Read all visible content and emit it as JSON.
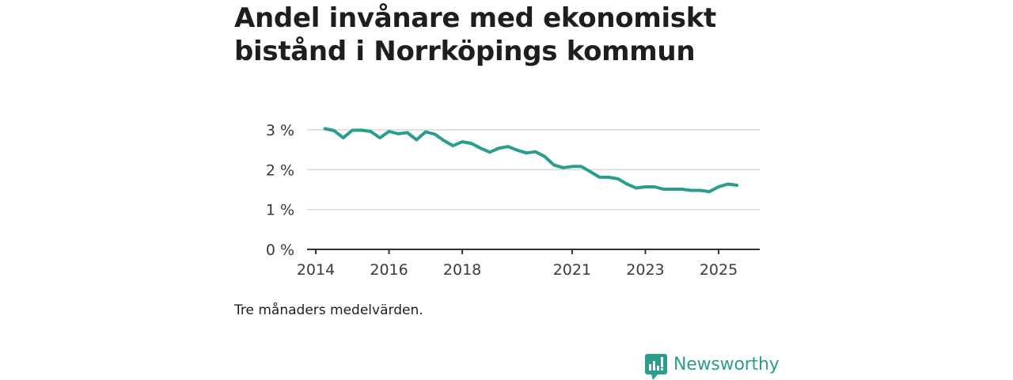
{
  "title": "Andel invånare med ekonomiskt bistånd i Norrköpings kommun",
  "caption": "Tre månaders medelvärden.",
  "brand": {
    "name": "Newsworthy",
    "icon": "bar-chart-speech-bubble-icon",
    "color": "#2a9d8f"
  },
  "chart_data": {
    "type": "line",
    "title": "Andel invånare med ekonomiskt bistånd i Norrköpings kommun",
    "xlabel": "",
    "ylabel": "",
    "xlim": [
      2014,
      2025.8
    ],
    "ylim": [
      0,
      3
    ],
    "x_ticks": [
      {
        "value": 2014,
        "label": "2014"
      },
      {
        "value": 2016,
        "label": "2016"
      },
      {
        "value": 2018,
        "label": "2018"
      },
      {
        "value": 2021,
        "label": "2021"
      },
      {
        "value": 2023,
        "label": "2023"
      },
      {
        "value": 2025,
        "label": "2025"
      }
    ],
    "y_ticks": [
      {
        "value": 0,
        "label": "0 %"
      },
      {
        "value": 1,
        "label": "1 %"
      },
      {
        "value": 2,
        "label": "2 %"
      },
      {
        "value": 3,
        "label": "3 %"
      }
    ],
    "grid": "horizontal",
    "line_color": "#2a9d8f",
    "series": [
      {
        "values": [
          [
            2014.25,
            3.03
          ],
          [
            2014.5,
            2.98
          ],
          [
            2014.75,
            2.8
          ],
          [
            2015.0,
            2.99
          ],
          [
            2015.25,
            2.99
          ],
          [
            2015.5,
            2.96
          ],
          [
            2015.75,
            2.8
          ],
          [
            2016.0,
            2.96
          ],
          [
            2016.25,
            2.9
          ],
          [
            2016.5,
            2.93
          ],
          [
            2016.75,
            2.75
          ],
          [
            2017.0,
            2.95
          ],
          [
            2017.25,
            2.89
          ],
          [
            2017.5,
            2.73
          ],
          [
            2017.75,
            2.6
          ],
          [
            2018.0,
            2.7
          ],
          [
            2018.25,
            2.66
          ],
          [
            2018.5,
            2.54
          ],
          [
            2018.75,
            2.44
          ],
          [
            2019.0,
            2.54
          ],
          [
            2019.25,
            2.58
          ],
          [
            2019.5,
            2.49
          ],
          [
            2019.75,
            2.42
          ],
          [
            2020.0,
            2.45
          ],
          [
            2020.25,
            2.33
          ],
          [
            2020.5,
            2.12
          ],
          [
            2020.75,
            2.05
          ],
          [
            2021.0,
            2.08
          ],
          [
            2021.25,
            2.08
          ],
          [
            2021.5,
            1.95
          ],
          [
            2021.75,
            1.81
          ],
          [
            2022.0,
            1.81
          ],
          [
            2022.25,
            1.77
          ],
          [
            2022.5,
            1.64
          ],
          [
            2022.75,
            1.54
          ],
          [
            2023.0,
            1.57
          ],
          [
            2023.25,
            1.57
          ],
          [
            2023.5,
            1.51
          ],
          [
            2023.75,
            1.51
          ],
          [
            2024.0,
            1.51
          ],
          [
            2024.25,
            1.48
          ],
          [
            2024.5,
            1.48
          ],
          [
            2024.75,
            1.45
          ],
          [
            2025.0,
            1.57
          ],
          [
            2025.25,
            1.64
          ],
          [
            2025.5,
            1.61
          ]
        ]
      }
    ]
  }
}
